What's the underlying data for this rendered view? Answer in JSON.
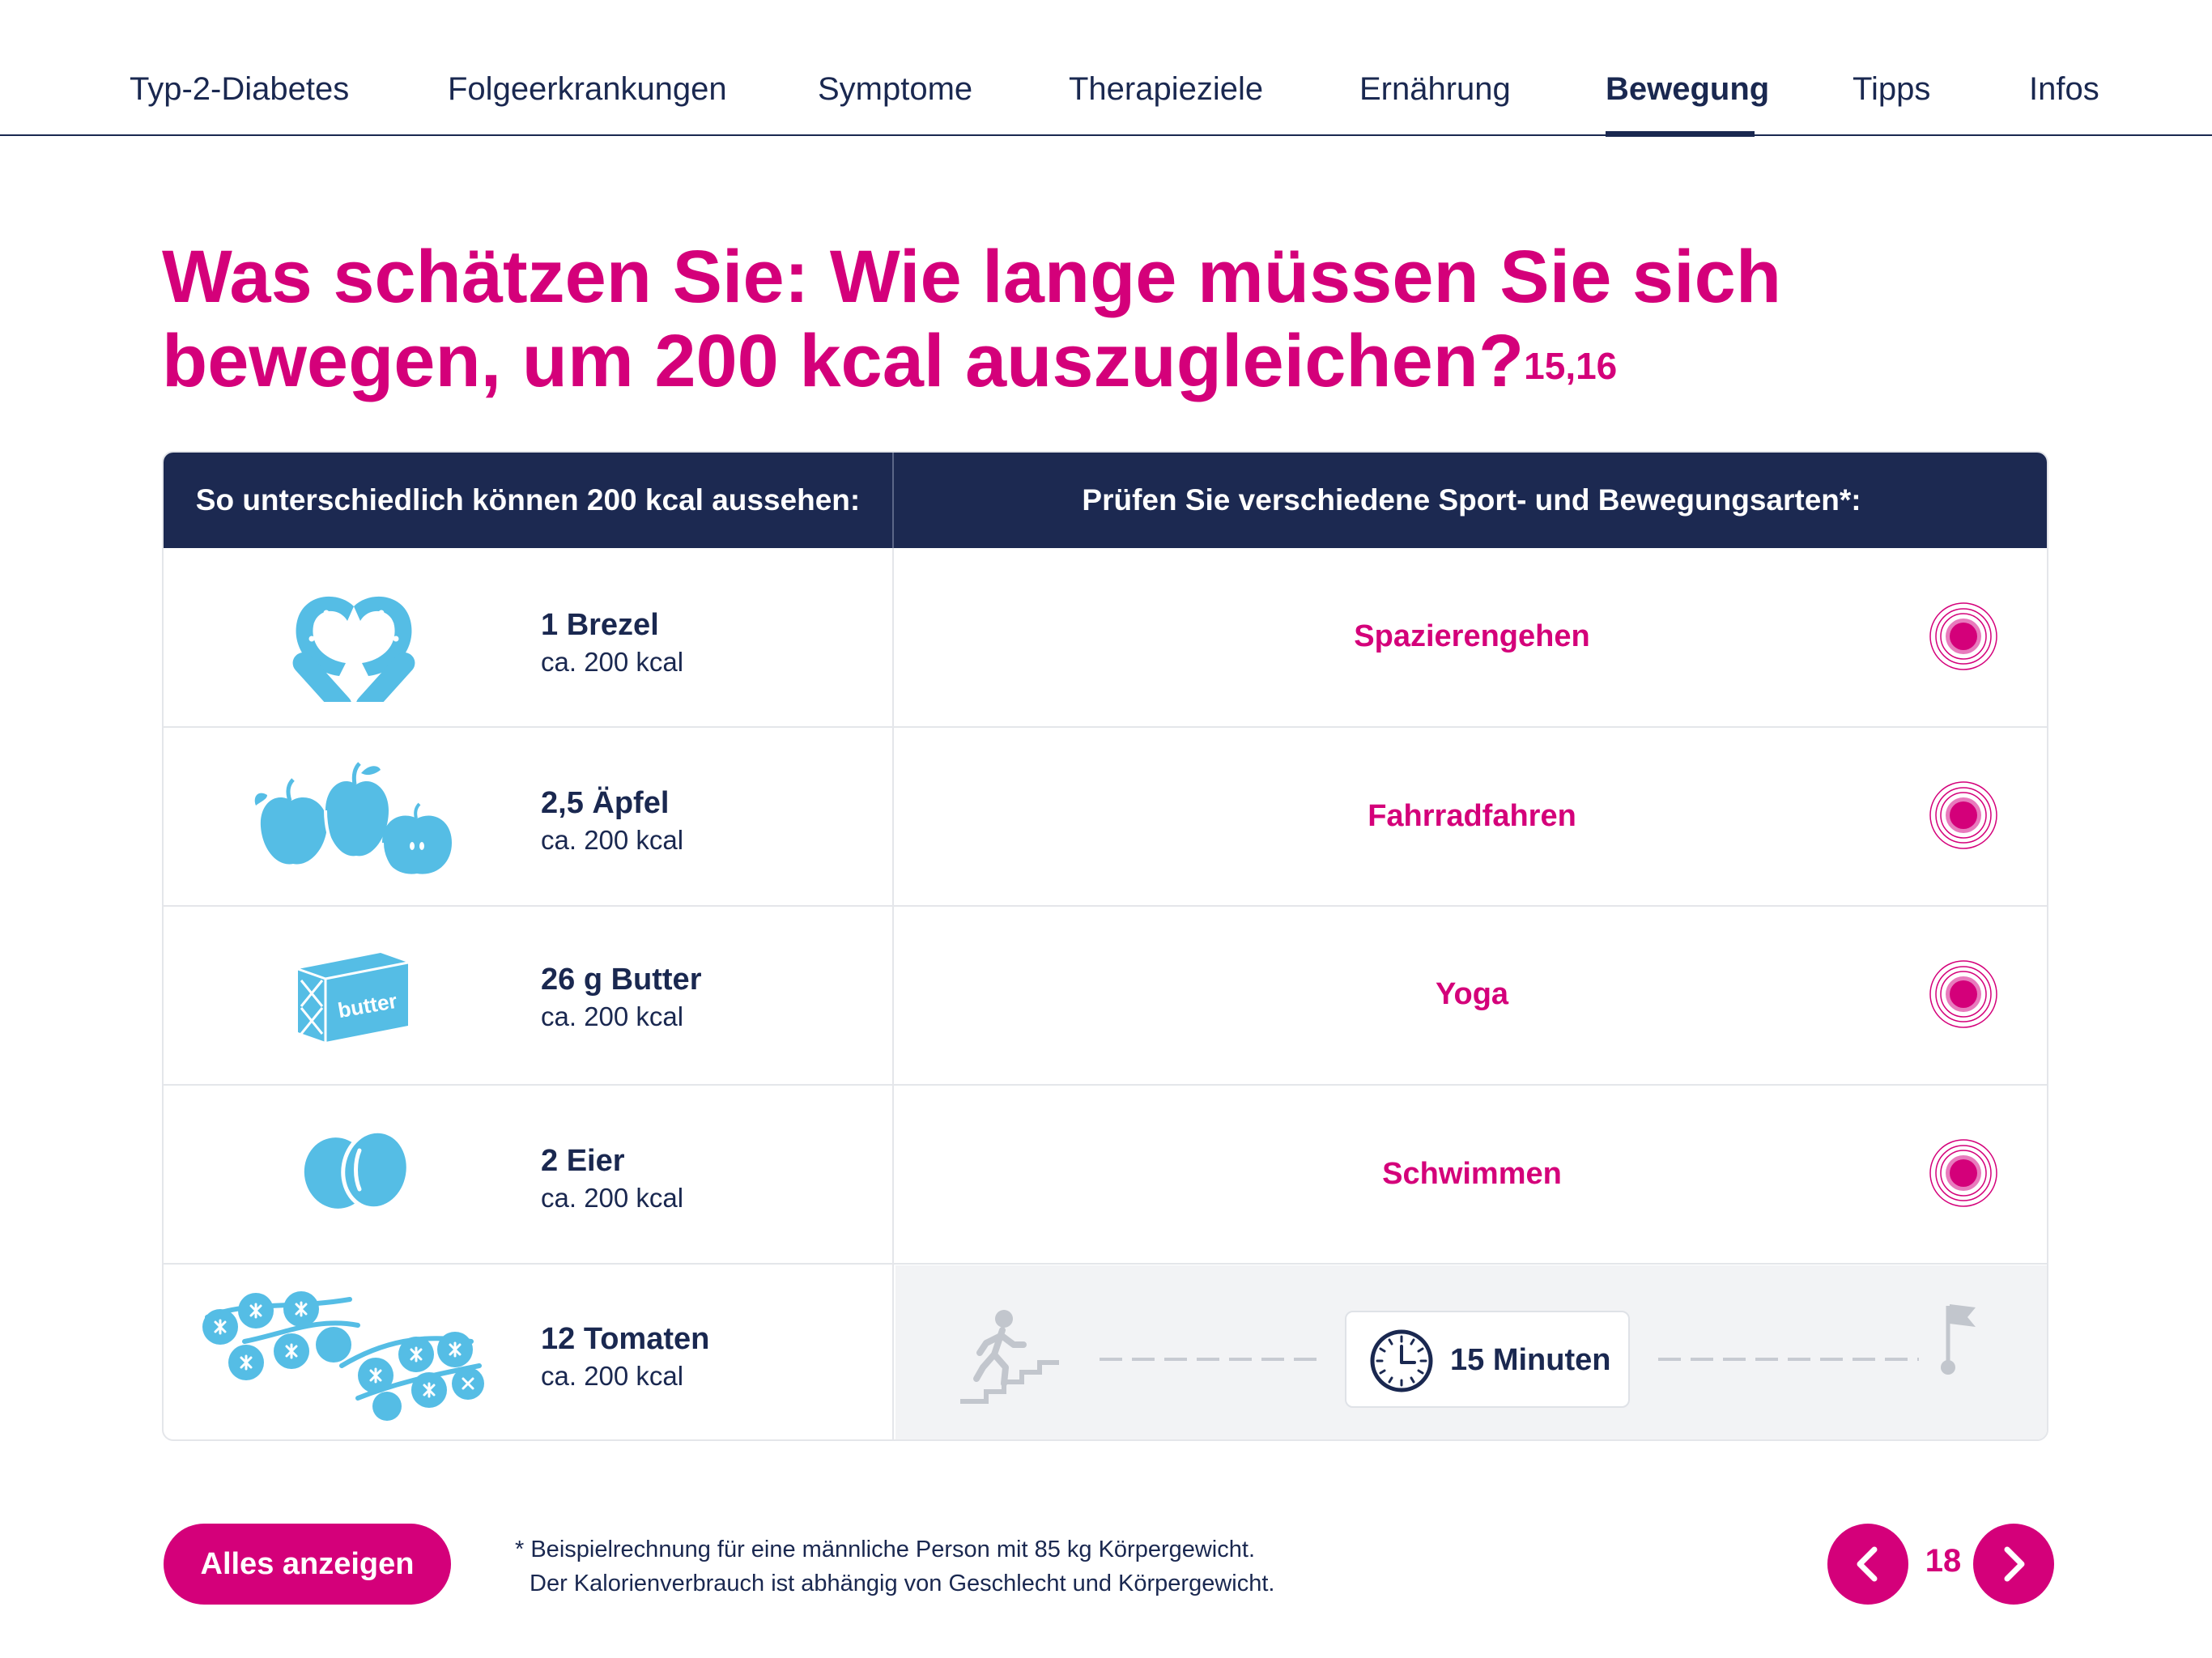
{
  "nav": {
    "items": [
      {
        "label": "Typ-2-Diabetes",
        "active": false
      },
      {
        "label": "Folgeerkrankungen",
        "active": false
      },
      {
        "label": "Symptome",
        "active": false
      },
      {
        "label": "Therapieziele",
        "active": false
      },
      {
        "label": "Ernährung",
        "active": false
      },
      {
        "label": "Bewegung",
        "active": true
      },
      {
        "label": "Tipps",
        "active": false
      },
      {
        "label": "Infos",
        "active": false
      }
    ]
  },
  "title": {
    "text": "Was schätzen Sie: Wie lange müssen Sie sich bewegen, um 200 kcal auszugleichen?",
    "superscript": "15,16"
  },
  "table": {
    "header_left": "So unterschiedlich können 200 kcal aussehen:",
    "header_right": "Prüfen Sie verschiedene Sport- und Bewegungsarten*:",
    "rows": [
      {
        "food": "1 Brezel",
        "kcal": "ca. 200 kcal",
        "icon": "pretzel-icon",
        "activity": "Spazierengehen"
      },
      {
        "food": "2,5 Äpfel",
        "kcal": "ca. 200 kcal",
        "icon": "apples-icon",
        "activity": "Fahrradfahren"
      },
      {
        "food": "26 g Butter",
        "kcal": "ca. 200 kcal",
        "icon": "butter-icon",
        "butter_label": "butter",
        "activity": "Yoga"
      },
      {
        "food": "2 Eier",
        "kcal": "ca. 200 kcal",
        "icon": "eggs-icon",
        "activity": "Schwimmen"
      },
      {
        "food": "12 Tomaten",
        "kcal": "ca. 200 kcal",
        "icon": "tomatoes-icon",
        "result": "15 Minuten"
      }
    ]
  },
  "footer": {
    "button_label": "Alles anzeigen",
    "footnote_line1": "* Beispielrechnung für eine männliche Person mit 85 kg Körpergewicht.",
    "footnote_line2": "Der Kalorienverbrauch ist abhängig von Geschlecht und Körpergewicht.",
    "page_number": "18"
  },
  "colors": {
    "accent": "#d4007a",
    "navy": "#1c2951",
    "icon_blue": "#55bde5"
  }
}
